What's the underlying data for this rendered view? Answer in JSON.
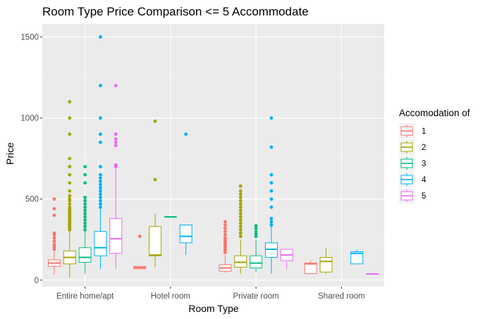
{
  "chart_data": {
    "type": "boxplot",
    "title": "Room Type Price Comparison <= 5 Accommodate",
    "xlabel": "Room Type",
    "ylabel": "Price",
    "ylim": [
      -40,
      1580
    ],
    "yticks": [
      0,
      500,
      1000,
      1500
    ],
    "categories": [
      "Entire home/apt",
      "Hotel room",
      "Private room",
      "Shared room"
    ],
    "grid": true,
    "legend": {
      "title": "Accomodation of",
      "position": "right",
      "entries": [
        "1",
        "2",
        "3",
        "4",
        "5"
      ]
    },
    "series": [
      {
        "name": "1",
        "color": "#F8766D",
        "boxes": [
          {
            "category": "Entire home/apt",
            "min": 35,
            "q1": 85,
            "median": 105,
            "q3": 125,
            "max": 175,
            "outliers": [
              190,
              200,
              210,
              220,
              240,
              260,
              280,
              290,
              400,
              440,
              500
            ]
          },
          {
            "category": "Hotel room",
            "min": 70,
            "q1": 70,
            "median": 77,
            "q3": 85,
            "max": 85,
            "outliers": [
              270
            ]
          },
          {
            "category": "Private room",
            "min": 45,
            "q1": 55,
            "median": 75,
            "q3": 95,
            "max": 155,
            "outliers": [
              170,
              180,
              190,
              200,
              210,
              220,
              230,
              240,
              250,
              260,
              280,
              300,
              320,
              340,
              360
            ]
          },
          {
            "category": "Shared room",
            "min": 40,
            "q1": 40,
            "median": 100,
            "q3": 105,
            "max": 120,
            "outliers": []
          }
        ]
      },
      {
        "name": "2",
        "color": "#A3A500",
        "boxes": [
          {
            "category": "Entire home/apt",
            "min": 15,
            "q1": 100,
            "median": 140,
            "q3": 180,
            "max": 300,
            "outliers": [
              310,
              320,
              330,
              340,
              350,
              360,
              370,
              380,
              390,
              400,
              410,
              420,
              430,
              440,
              450,
              470,
              490,
              500,
              520,
              550,
              600,
              650,
              700,
              750,
              900,
              1000,
              1100
            ]
          },
          {
            "category": "Hotel room",
            "min": 80,
            "q1": 150,
            "median": 155,
            "q3": 330,
            "max": 410,
            "outliers": [
              620,
              980
            ]
          },
          {
            "category": "Private room",
            "min": 40,
            "q1": 80,
            "median": 110,
            "q3": 150,
            "max": 250,
            "outliers": [
              270,
              290,
              310,
              330,
              350,
              370,
              390,
              410,
              430,
              450,
              470,
              490,
              510,
              530,
              550,
              580
            ]
          },
          {
            "category": "Shared room",
            "min": 40,
            "q1": 50,
            "median": 115,
            "q3": 140,
            "max": 195,
            "outliers": []
          }
        ]
      },
      {
        "name": "3",
        "color": "#00BF7D",
        "boxes": [
          {
            "category": "Entire home/apt",
            "min": 40,
            "q1": 110,
            "median": 140,
            "q3": 200,
            "max": 300,
            "outliers": [
              310,
              330,
              350,
              370,
              390,
              410,
              430,
              450,
              470,
              490,
              510,
              600,
              650,
              700
            ]
          },
          {
            "category": "Hotel room",
            "min": 390,
            "q1": 390,
            "median": 390,
            "q3": 390,
            "max": 390,
            "outliers": []
          },
          {
            "category": "Private room",
            "min": 50,
            "q1": 75,
            "median": 105,
            "q3": 150,
            "max": 250,
            "outliers": [
              270,
              285,
              300,
              320,
              335
            ]
          },
          {
            "category": "Shared room",
            "min": null,
            "q1": null,
            "median": null,
            "q3": null,
            "max": null,
            "outliers": []
          }
        ]
      },
      {
        "name": "4",
        "color": "#00B0F6",
        "boxes": [
          {
            "category": "Entire home/apt",
            "min": 70,
            "q1": 150,
            "median": 200,
            "q3": 300,
            "max": 440,
            "outliers": [
              450,
              470,
              490,
              510,
              530,
              550,
              570,
              590,
              610,
              630,
              650,
              700,
              850,
              900,
              1000,
              1200,
              1500
            ]
          },
          {
            "category": "Hotel room",
            "min": 155,
            "q1": 230,
            "median": 270,
            "q3": 340,
            "max": 340,
            "outliers": [
              900
            ]
          },
          {
            "category": "Private room",
            "min": 40,
            "q1": 140,
            "median": 190,
            "q3": 230,
            "max": 330,
            "outliers": [
              340,
              360,
              380,
              450,
              500,
              550,
              600,
              650,
              820,
              1000
            ]
          },
          {
            "category": "Shared room",
            "min": 100,
            "q1": 100,
            "median": 165,
            "q3": 175,
            "max": 190,
            "outliers": []
          }
        ]
      },
      {
        "name": "5",
        "color": "#E76BF3",
        "boxes": [
          {
            "category": "Entire home/apt",
            "min": 70,
            "q1": 165,
            "median": 255,
            "q3": 380,
            "max": 690,
            "outliers": [
              700,
              710,
              830,
              850,
              870,
              900,
              1200
            ]
          },
          {
            "category": "Hotel room",
            "min": null,
            "q1": null,
            "median": null,
            "q3": null,
            "max": null,
            "outliers": []
          },
          {
            "category": "Private room",
            "min": 70,
            "q1": 120,
            "median": 155,
            "q3": 190,
            "max": 190,
            "outliers": []
          },
          {
            "category": "Shared room",
            "min": 38,
            "q1": 38,
            "median": 38,
            "q3": 38,
            "max": 38,
            "outliers": []
          }
        ]
      }
    ]
  }
}
